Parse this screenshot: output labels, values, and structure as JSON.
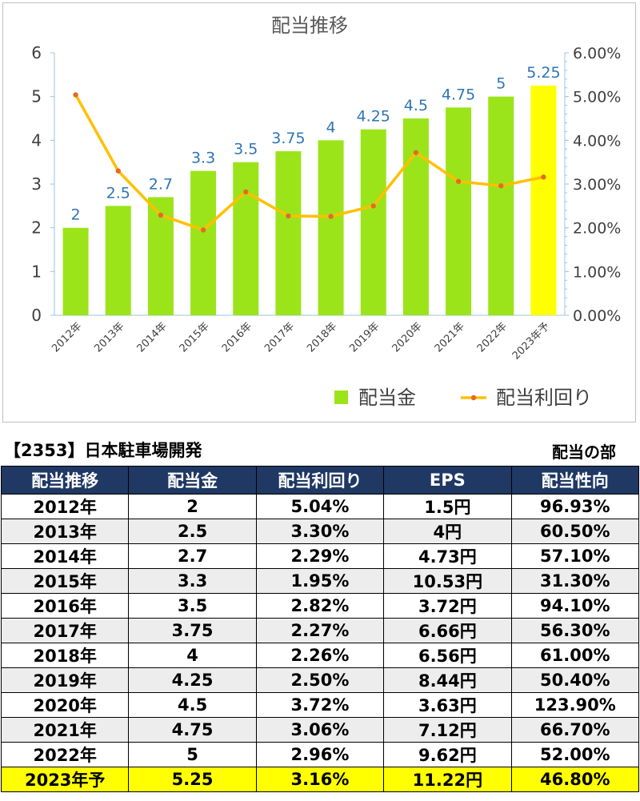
{
  "chart_data": {
    "type": "bar+line",
    "title": "配当推移",
    "categories": [
      "2012年",
      "2013年",
      "2014年",
      "2015年",
      "2016年",
      "2017年",
      "2018年",
      "2019年",
      "2020年",
      "2021年",
      "2022年",
      "2023年予"
    ],
    "series": [
      {
        "name": "配当金",
        "type": "bar",
        "axis": "left",
        "values": [
          2,
          2.5,
          2.7,
          3.3,
          3.5,
          3.75,
          4,
          4.25,
          4.5,
          4.75,
          5,
          5.25
        ],
        "data_labels": [
          "2",
          "2.5",
          "2.7",
          "3.3",
          "3.5",
          "3.75",
          "4",
          "4.25",
          "4.5",
          "4.75",
          "5",
          "5.25"
        ],
        "color": "#9be41a",
        "highlight_color": "#ffff00",
        "highlight_index": 11
      },
      {
        "name": "配当利回り",
        "type": "line",
        "axis": "right",
        "values": [
          5.04,
          3.3,
          2.29,
          1.95,
          2.82,
          2.27,
          2.26,
          2.5,
          3.72,
          3.06,
          2.96,
          3.16
        ],
        "color": "#ffc000",
        "marker_color": "#e26b2a"
      }
    ],
    "y_left": {
      "range": [
        0,
        6
      ],
      "ticks": [
        "0",
        "1",
        "2",
        "3",
        "4",
        "5",
        "6"
      ]
    },
    "y_right": {
      "range": [
        0,
        6
      ],
      "ticks": [
        "0.00%",
        "1.00%",
        "2.00%",
        "3.00%",
        "4.00%",
        "5.00%",
        "6.00%"
      ]
    },
    "grid": false,
    "legend": "bottom-right",
    "label_color": "#2e75b6"
  },
  "header": {
    "company": "【2353】日本駐車場開発",
    "section": "配当の部"
  },
  "table": {
    "columns": [
      "配当推移",
      "配当金",
      "配当利回り",
      "EPS",
      "配当性向"
    ],
    "rows": [
      [
        "2012年",
        "2",
        "5.04%",
        "1.5円",
        "96.93%"
      ],
      [
        "2013年",
        "2.5",
        "3.30%",
        "4円",
        "60.50%"
      ],
      [
        "2014年",
        "2.7",
        "2.29%",
        "4.73円",
        "57.10%"
      ],
      [
        "2015年",
        "3.3",
        "1.95%",
        "10.53円",
        "31.30%"
      ],
      [
        "2016年",
        "3.5",
        "2.82%",
        "3.72円",
        "94.10%"
      ],
      [
        "2017年",
        "3.75",
        "2.27%",
        "6.66円",
        "56.30%"
      ],
      [
        "2018年",
        "4",
        "2.26%",
        "6.56円",
        "61.00%"
      ],
      [
        "2019年",
        "4.25",
        "2.50%",
        "8.44円",
        "50.40%"
      ],
      [
        "2020年",
        "4.5",
        "3.72%",
        "3.63円",
        "123.90%"
      ],
      [
        "2021年",
        "4.75",
        "3.06%",
        "7.12円",
        "66.70%"
      ],
      [
        "2022年",
        "5",
        "2.96%",
        "9.62円",
        "52.00%"
      ],
      [
        "2023年予",
        "5.25",
        "3.16%",
        "11.22円",
        "46.80%"
      ]
    ],
    "highlight_row": 11
  }
}
